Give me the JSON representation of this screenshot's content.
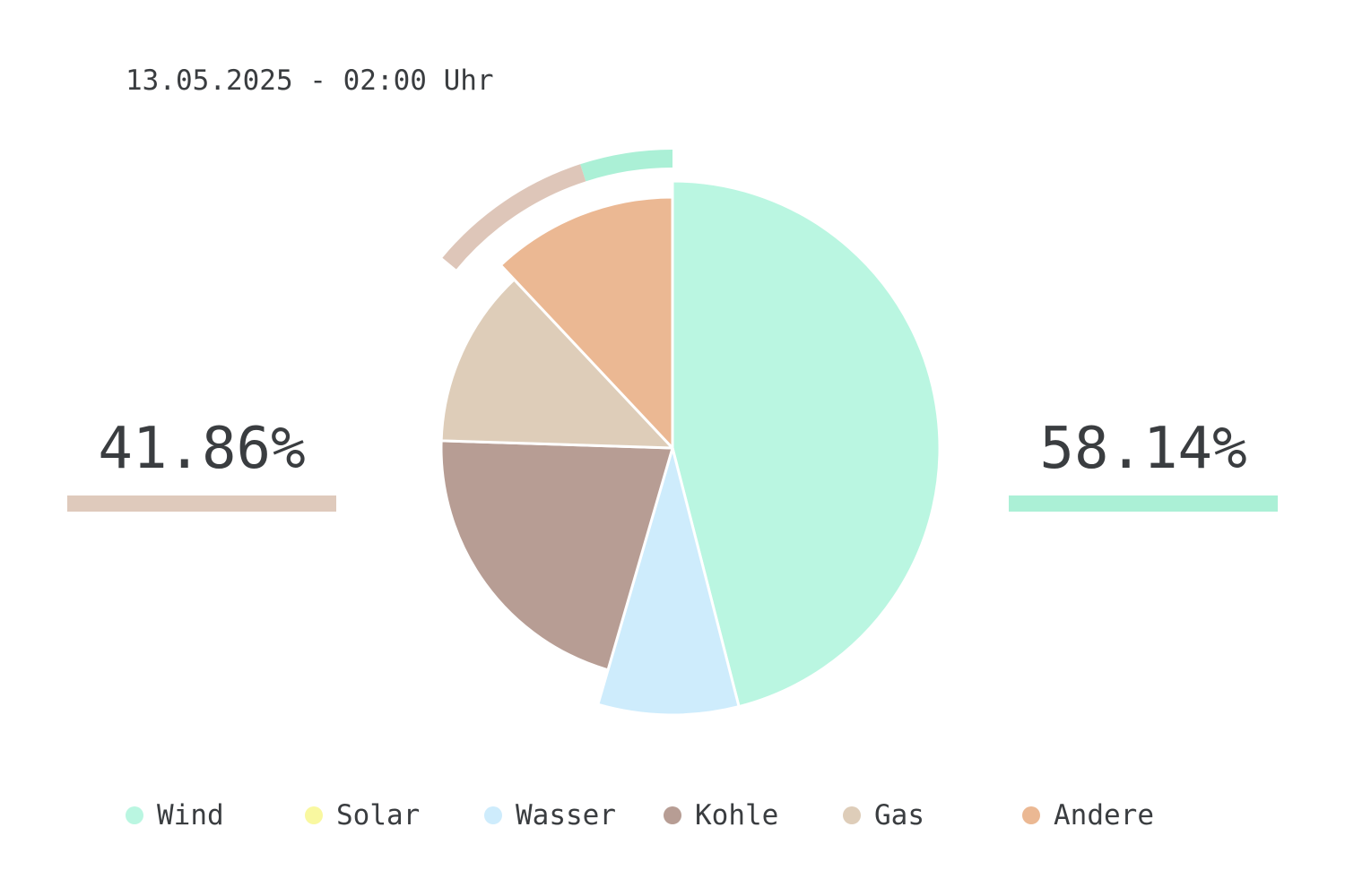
{
  "header": {
    "timestamp": "13.05.2025 - 02:00 Uhr"
  },
  "summary": {
    "left": {
      "value": "41.86%",
      "color": "#dfcabc"
    },
    "right": {
      "value": "58.14%",
      "color": "#abf0d6"
    }
  },
  "chart_data": {
    "type": "pie",
    "start_angle_deg": 0,
    "direction": "clockwise",
    "slices": [
      {
        "name": "Wind",
        "value": 46.0,
        "color": "#baf6e1"
      },
      {
        "name": "Solar",
        "value": 0.0,
        "color": "#f9f8a0"
      },
      {
        "name": "Wasser",
        "value": 8.5,
        "color": "#ceecfc"
      },
      {
        "name": "Kohle",
        "value": 21.0,
        "color": "#b79d94"
      },
      {
        "name": "Gas",
        "value": 12.5,
        "color": "#decdb9"
      },
      {
        "name": "Andere",
        "value": 12.0,
        "color": "#ebb893"
      }
    ],
    "outer_arcs": [
      {
        "name": "Gas",
        "value": 9.0,
        "color": "#dec6b9"
      },
      {
        "name": "Wind",
        "value": 5.0,
        "color": "#abf0d6"
      }
    ],
    "legend_position": "bottom"
  },
  "legend": {
    "items": [
      {
        "label": "Wind",
        "color": "#baf6e1"
      },
      {
        "label": "Solar",
        "color": "#f9f8a0"
      },
      {
        "label": "Wasser",
        "color": "#ceecfc"
      },
      {
        "label": "Kohle",
        "color": "#b79d94"
      },
      {
        "label": "Gas",
        "color": "#decdb9"
      },
      {
        "label": "Andere",
        "color": "#ebb893"
      }
    ]
  }
}
